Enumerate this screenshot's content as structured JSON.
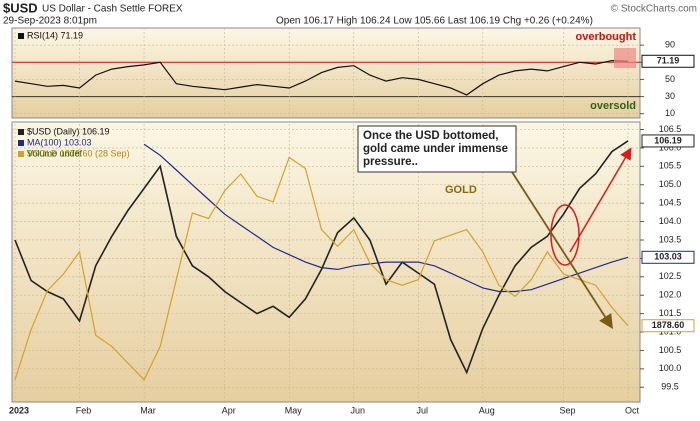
{
  "header": {
    "symbol": "$USD",
    "name": "US Dollar - Cash Settle FOREX",
    "date": "29-Sep-2023 8:01pm",
    "quote": "Open 106.17 High 106.24 Low 105.66 Last 106.19 Chg +0.26 (+0.24%)",
    "source": "© StockCharts.com"
  },
  "chart_data": [
    {
      "type": "line",
      "categories": [
        "2023",
        null,
        null,
        null,
        "Feb",
        null,
        null,
        null,
        "Mar",
        null,
        null,
        null,
        null,
        "Apr",
        null,
        null,
        null,
        "May",
        null,
        null,
        null,
        "Jun",
        null,
        null,
        null,
        "Jul",
        null,
        null,
        null,
        "Aug",
        null,
        null,
        null,
        null,
        "Sep",
        null,
        null,
        null,
        "Oct"
      ],
      "series": [
        {
          "name": "RSI(14) 71.19",
          "color": "#111111",
          "values": [
            48,
            45,
            42,
            43,
            40,
            55,
            62,
            65,
            67,
            70,
            45,
            42,
            40,
            38,
            41,
            44,
            42,
            40,
            48,
            58,
            64,
            66,
            55,
            48,
            52,
            50,
            45,
            40,
            32,
            45,
            55,
            60,
            62,
            60,
            65,
            70,
            68,
            72,
            71.19
          ]
        }
      ],
      "ylim": [
        5,
        110
      ],
      "yticks": [
        90,
        70,
        50,
        30,
        10
      ],
      "grid": true,
      "levels": [
        {
          "value": 70,
          "label": "overbought",
          "line_color": "#cc1111",
          "label_color": "#cc1111"
        },
        {
          "value": 30,
          "label": "oversold",
          "line_color": "#333333",
          "label_color": "#2e5e1e"
        }
      ]
    },
    {
      "type": "line",
      "categories": [
        "2023",
        null,
        null,
        null,
        "Feb",
        null,
        null,
        null,
        "Mar",
        null,
        null,
        null,
        null,
        "Apr",
        null,
        null,
        null,
        "May",
        null,
        null,
        null,
        "Jun",
        null,
        null,
        null,
        "Jul",
        null,
        null,
        null,
        "Aug",
        null,
        null,
        null,
        null,
        "Sep",
        null,
        null,
        null,
        "Oct"
      ],
      "series": [
        {
          "name": "$USD (Daily) 106.19",
          "color": "#222222",
          "values": [
            103.5,
            102.4,
            102.1,
            101.9,
            101.3,
            102.8,
            103.6,
            104.3,
            104.9,
            105.5,
            103.6,
            102.8,
            102.5,
            102.1,
            101.8,
            101.5,
            101.7,
            101.4,
            101.9,
            102.7,
            103.7,
            104.1,
            103.5,
            102.3,
            102.9,
            102.6,
            102.3,
            100.8,
            99.9,
            101.1,
            102.0,
            102.8,
            103.3,
            103.6,
            104.2,
            104.9,
            105.3,
            105.9,
            106.19
          ]
        },
        {
          "name": "MA(100) 103.03",
          "color": "#1f2a8a",
          "values": [
            null,
            null,
            null,
            null,
            null,
            null,
            null,
            null,
            106.1,
            105.8,
            105.4,
            105.0,
            104.6,
            104.2,
            103.9,
            103.6,
            103.3,
            103.1,
            102.9,
            102.75,
            102.7,
            102.8,
            102.85,
            102.9,
            102.9,
            102.9,
            102.8,
            102.6,
            102.4,
            102.2,
            102.1,
            102.1,
            102.15,
            102.3,
            102.45,
            102.6,
            102.75,
            102.9,
            103.03
          ]
        },
        {
          "name": "$GOLD 1878.60 (28 Sep)",
          "color": "#d4a22a",
          "axis": "y2",
          "end_label": "1878.60",
          "values": [
            1830,
            1875,
            1910,
            1925,
            1945,
            1870,
            1860,
            1845,
            1830,
            1860,
            1920,
            1980,
            1975,
            2000,
            2015,
            1995,
            1990,
            2030,
            2020,
            1965,
            1950,
            1965,
            1935,
            1920,
            1915,
            1920,
            1955,
            1960,
            1965,
            1945,
            1915,
            1905,
            1920,
            1945,
            1925,
            1920,
            1915,
            1895,
            1878.6
          ]
        }
      ],
      "legend_notes": [
        "Volume undef"
      ],
      "ylim": [
        99.1,
        106.65
      ],
      "yticks": [
        99.5,
        {
          "value": 100,
          "label": "100.0"
        },
        100.5,
        {
          "value": 101,
          "label": "101.0"
        },
        101.5,
        {
          "value": 102,
          "label": "102.0"
        },
        102.5,
        {
          "value": 103,
          "label": "103.0"
        },
        103.5,
        {
          "value": 104,
          "label": "104.0"
        },
        104.5,
        {
          "value": 105,
          "label": "105.0"
        },
        105.5,
        {
          "value": 106,
          "label": "106.0"
        },
        106.5
      ],
      "y2lim": [
        1810,
        2060
      ],
      "grid": true,
      "annotations": [
        {
          "lines": [
            "Once the USD bottomed,",
            "gold came under immense",
            "pressure.."
          ]
        },
        {
          "text": "GOLD",
          "color": "#8a6a10"
        }
      ]
    }
  ]
}
